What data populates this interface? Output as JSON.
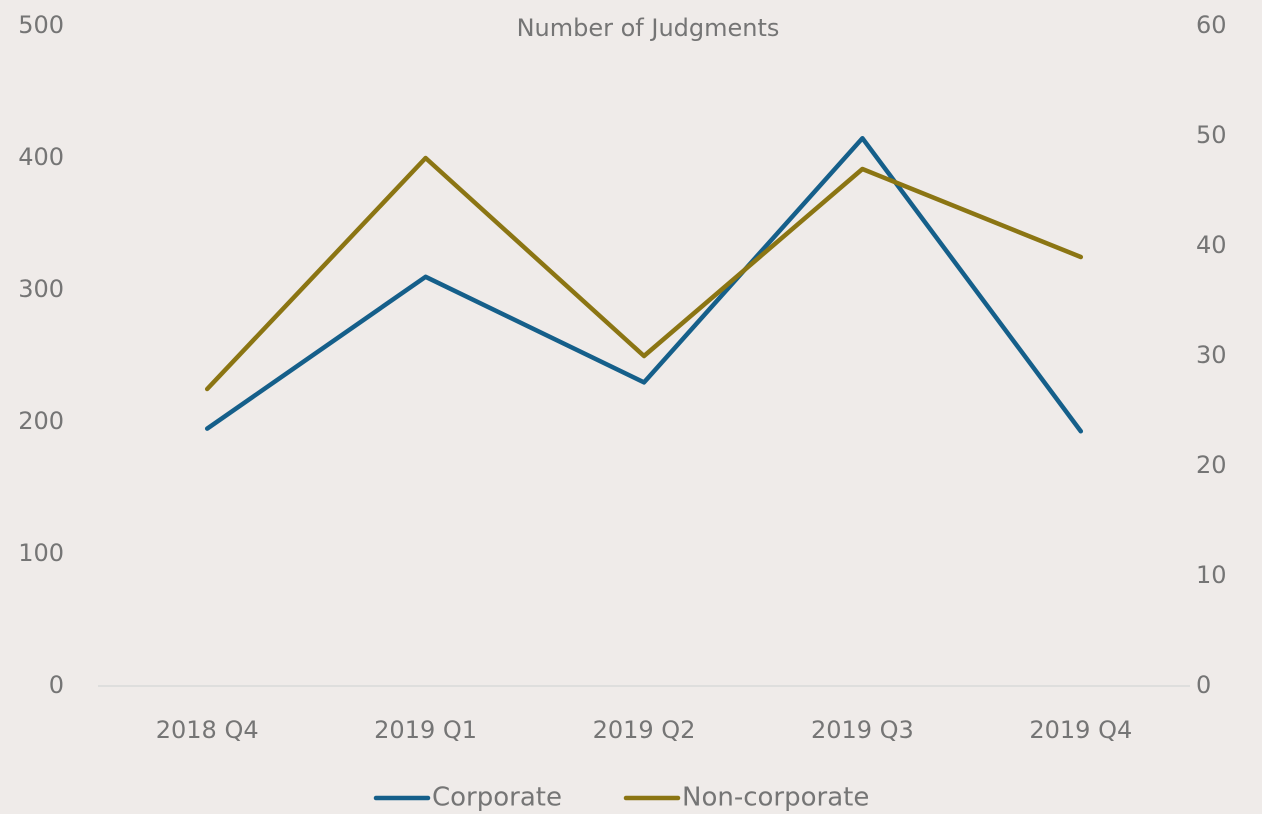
{
  "chart_data": {
    "type": "line",
    "title": "Number of Judgments",
    "categories": [
      "2018 Q4",
      "2019 Q1",
      "2019 Q2",
      "2019 Q3",
      "2019 Q4"
    ],
    "series": [
      {
        "name": "Corporate",
        "color": "#155f8a",
        "values": [
          195,
          310,
          230,
          415,
          193
        ]
      },
      {
        "name": "Non-corporate",
        "color": "#8b7513",
        "values": [
          27,
          48,
          30,
          47,
          39
        ],
        "axis": "y2"
      }
    ],
    "ylim": [
      0,
      500
    ],
    "yticks": [
      0,
      100,
      200,
      300,
      400,
      500
    ],
    "y2lim": [
      0,
      60
    ],
    "y2ticks": [
      0,
      10,
      20,
      30,
      40,
      50,
      60
    ],
    "grid": false,
    "legend": "bottom"
  }
}
